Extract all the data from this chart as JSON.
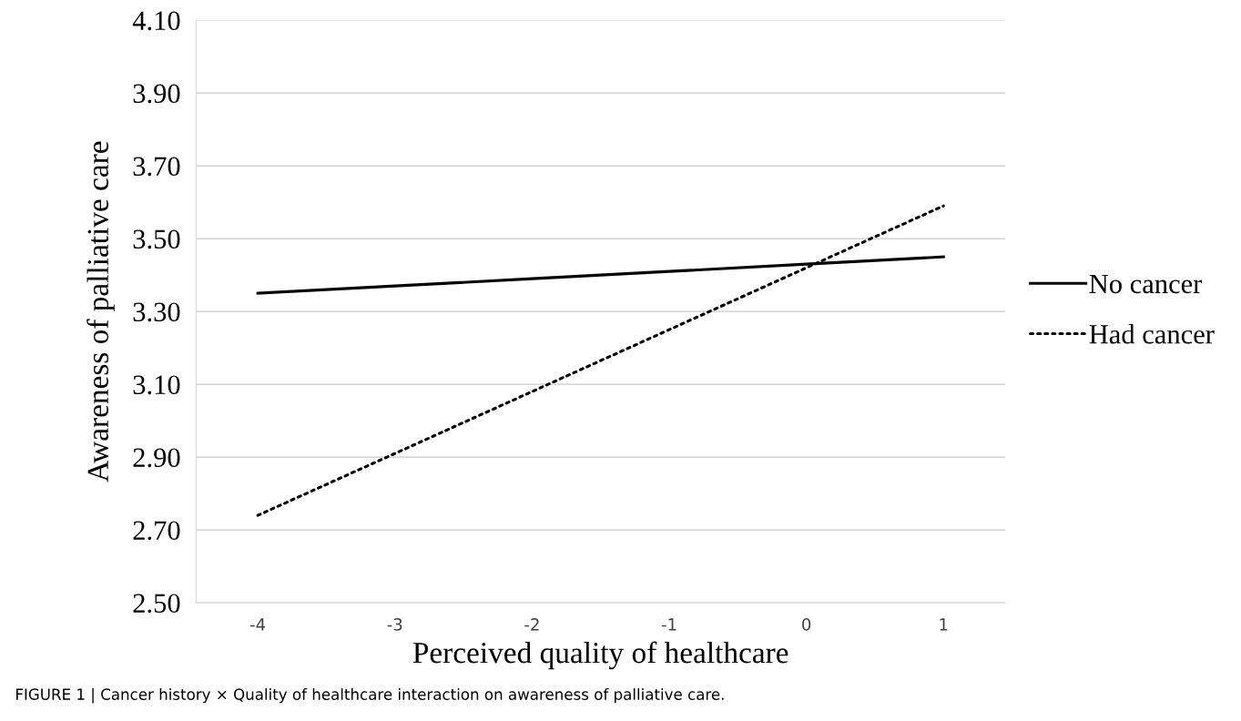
{
  "chart_data": {
    "type": "line",
    "xlabel": "Perceived quality of healthcare",
    "ylabel": "Awareness of palliative care",
    "categories": [
      "-4",
      "-3",
      "-2",
      "-1",
      "0",
      "1"
    ],
    "series": [
      {
        "name": "No cancer",
        "color": "#000000",
        "line_style": "solid",
        "values": [
          3.35,
          3.37,
          3.39,
          3.41,
          3.43,
          3.45
        ]
      },
      {
        "name": "Had cancer",
        "color": "#000000",
        "line_style": "dotted",
        "values": [
          2.74,
          2.91,
          3.08,
          3.25,
          3.42,
          3.59
        ]
      }
    ],
    "ylim": [
      2.5,
      4.1
    ],
    "yticks": [
      {
        "value": 2.5,
        "label": "2.50"
      },
      {
        "value": 2.7,
        "label": "2.70"
      },
      {
        "value": 2.9,
        "label": "2.90"
      },
      {
        "value": 3.1,
        "label": "3.10"
      },
      {
        "value": 3.3,
        "label": "3.30"
      },
      {
        "value": 3.5,
        "label": "3.50"
      },
      {
        "value": 3.7,
        "label": "3.70"
      },
      {
        "value": 3.9,
        "label": "3.90"
      },
      {
        "value": 4.1,
        "label": "4.10"
      }
    ],
    "grid": "y",
    "legend": "right",
    "marker": "none",
    "annotations": [
      "FIGURE 1 | Cancer history × Quality of healthcare interaction on awareness of palliative care."
    ]
  }
}
